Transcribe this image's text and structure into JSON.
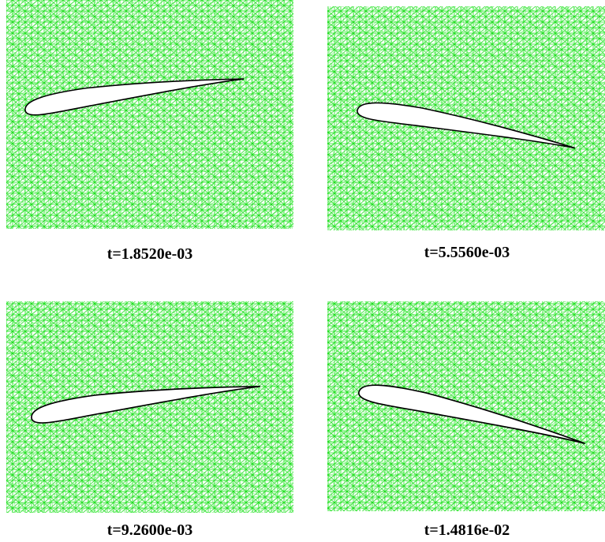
{
  "panels": [
    {
      "caption": "t=1.8520e-03"
    },
    {
      "caption": "t=5.5560e-03"
    },
    {
      "caption": "t=9.2600e-03"
    },
    {
      "caption": "t=1.4816e-02"
    }
  ]
}
